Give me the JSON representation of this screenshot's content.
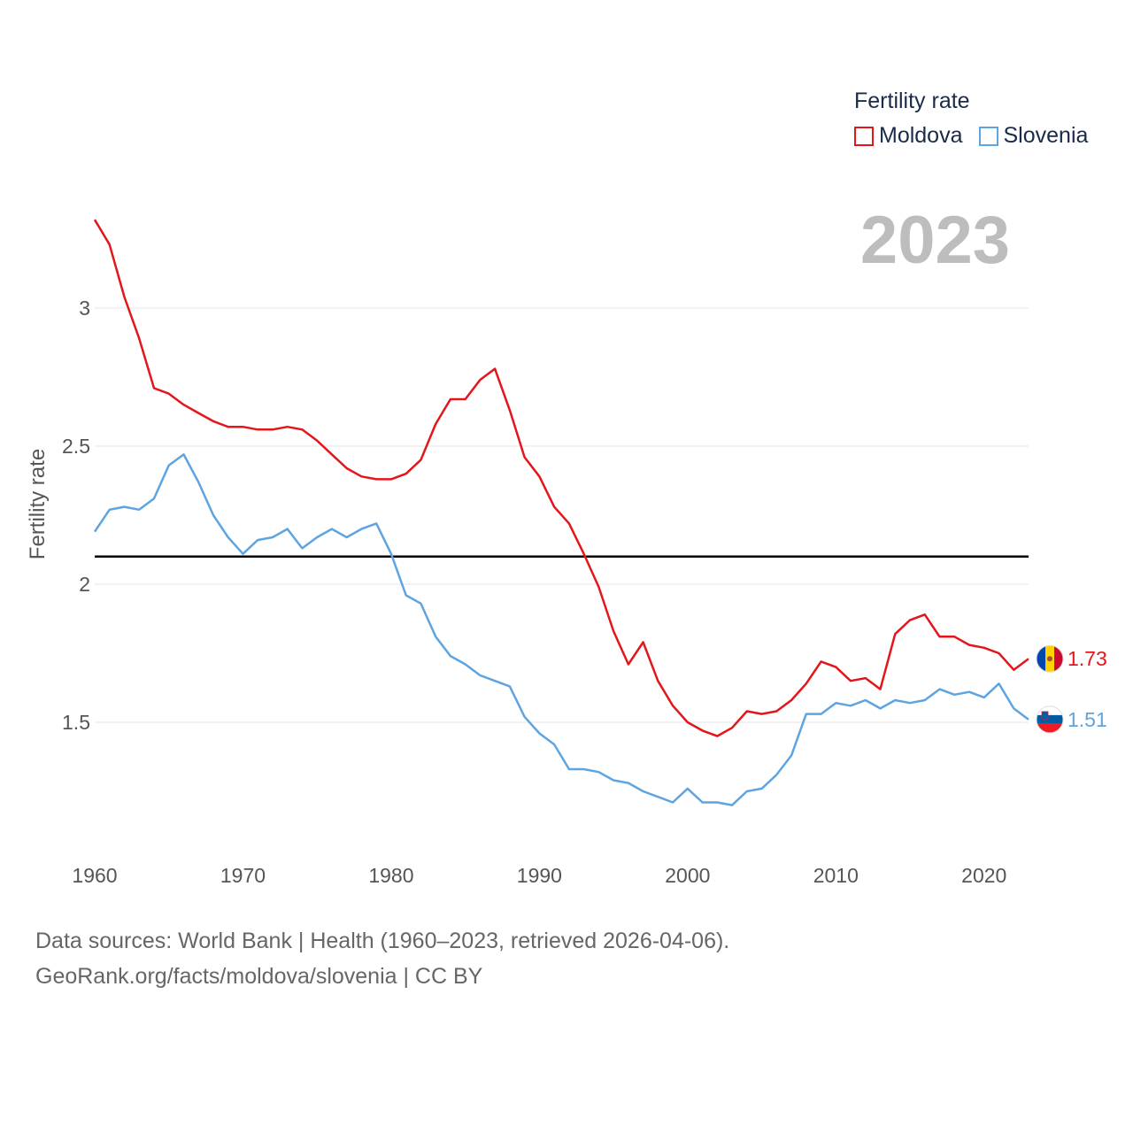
{
  "chart_data": {
    "type": "line",
    "legend_title": "Fertility rate",
    "ylabel": "Fertility rate",
    "xlabel": "",
    "current_year": "2023",
    "xlim": [
      1960,
      2023
    ],
    "ylim": [
      1.1,
      3.4
    ],
    "x_ticks": [
      1960,
      1970,
      1980,
      1990,
      2000,
      2010,
      2020
    ],
    "y_ticks": [
      1.5,
      2,
      2.5,
      3
    ],
    "reference_line": 2.1,
    "grid": true,
    "legend_position": "top-right",
    "x": [
      1960,
      1961,
      1962,
      1963,
      1964,
      1965,
      1966,
      1967,
      1968,
      1969,
      1970,
      1971,
      1972,
      1973,
      1974,
      1975,
      1976,
      1977,
      1978,
      1979,
      1980,
      1981,
      1982,
      1983,
      1984,
      1985,
      1986,
      1987,
      1988,
      1989,
      1990,
      1991,
      1992,
      1993,
      1994,
      1995,
      1996,
      1997,
      1998,
      1999,
      2000,
      2001,
      2002,
      2003,
      2004,
      2005,
      2006,
      2007,
      2008,
      2009,
      2010,
      2011,
      2012,
      2013,
      2014,
      2015,
      2016,
      2017,
      2018,
      2019,
      2020,
      2021,
      2022,
      2023
    ],
    "series": [
      {
        "name": "Moldova",
        "color": "#e3161b",
        "end_label": "1.73",
        "values": [
          3.32,
          3.23,
          3.04,
          2.89,
          2.71,
          2.69,
          2.65,
          2.62,
          2.59,
          2.57,
          2.57,
          2.56,
          2.56,
          2.57,
          2.56,
          2.52,
          2.47,
          2.42,
          2.39,
          2.38,
          2.38,
          2.4,
          2.45,
          2.58,
          2.67,
          2.67,
          2.74,
          2.78,
          2.63,
          2.46,
          2.39,
          2.28,
          2.22,
          2.11,
          1.99,
          1.83,
          1.71,
          1.79,
          1.65,
          1.56,
          1.5,
          1.47,
          1.45,
          1.48,
          1.54,
          1.53,
          1.54,
          1.58,
          1.64,
          1.72,
          1.7,
          1.65,
          1.66,
          1.62,
          1.82,
          1.87,
          1.89,
          1.81,
          1.81,
          1.78,
          1.77,
          1.75,
          1.69,
          1.73
        ]
      },
      {
        "name": "Slovenia",
        "color": "#5ea4e0",
        "end_label": "1.51",
        "values": [
          2.19,
          2.27,
          2.28,
          2.27,
          2.31,
          2.43,
          2.47,
          2.37,
          2.25,
          2.17,
          2.11,
          2.16,
          2.17,
          2.2,
          2.13,
          2.17,
          2.2,
          2.17,
          2.2,
          2.22,
          2.11,
          1.96,
          1.93,
          1.81,
          1.74,
          1.71,
          1.67,
          1.65,
          1.63,
          1.52,
          1.46,
          1.42,
          1.33,
          1.33,
          1.32,
          1.29,
          1.28,
          1.25,
          1.23,
          1.21,
          1.26,
          1.21,
          1.21,
          1.2,
          1.25,
          1.26,
          1.31,
          1.38,
          1.53,
          1.53,
          1.57,
          1.56,
          1.58,
          1.55,
          1.58,
          1.57,
          1.58,
          1.62,
          1.6,
          1.61,
          1.59,
          1.64,
          1.55,
          1.51
        ]
      }
    ]
  },
  "source": {
    "line1": "Data sources: World Bank | Health (1960–2023, retrieved 2026-04-06).",
    "line2": "GeoRank.org/facts/moldova/slovenia | CC BY"
  }
}
